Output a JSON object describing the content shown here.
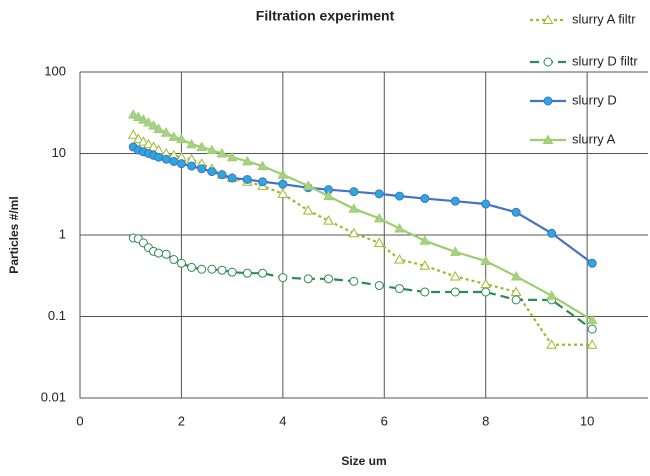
{
  "chart_data": {
    "type": "line",
    "title": "Filtration experiment",
    "x_label": "Size um",
    "y_label": "Particles #/ml",
    "x": [
      1.05,
      1.15,
      1.25,
      1.35,
      1.45,
      1.55,
      1.7,
      1.85,
      2.0,
      2.2,
      2.4,
      2.6,
      2.8,
      3.0,
      3.3,
      3.6,
      4.0,
      4.5,
      4.9,
      5.4,
      5.9,
      6.3,
      6.8,
      7.4,
      8.0,
      8.6,
      9.3,
      10.1
    ],
    "series": [
      {
        "name": "slurry A filtr",
        "color": "#9cbb2c",
        "dash": "dotted",
        "marker": "triangle",
        "filled": false,
        "values": [
          17,
          15,
          14,
          13,
          12,
          11,
          10,
          9.5,
          9,
          8.5,
          7.5,
          6.5,
          5.5,
          5,
          4.5,
          4,
          3.2,
          2,
          1.5,
          1.05,
          0.8,
          0.5,
          0.42,
          0.31,
          0.25,
          0.2,
          0.045,
          0.045
        ]
      },
      {
        "name": "slurry D filtr",
        "color": "#2e8b57",
        "dash": "dashed",
        "marker": "circle",
        "filled": false,
        "values": [
          0.92,
          0.9,
          0.8,
          0.7,
          0.63,
          0.6,
          0.58,
          0.5,
          0.45,
          0.4,
          0.38,
          0.38,
          0.37,
          0.35,
          0.34,
          0.34,
          0.3,
          0.29,
          0.29,
          0.27,
          0.24,
          0.22,
          0.2,
          0.2,
          0.2,
          0.16,
          0.16,
          0.07
        ]
      },
      {
        "name": "slurry D",
        "color": "#4472c4",
        "dash": "solid",
        "marker": "circle",
        "filled": true,
        "marker_fill": "#2aa8e0",
        "values": [
          12,
          11,
          10.5,
          10,
          9.5,
          9,
          8.5,
          8,
          7.5,
          7,
          6.5,
          6,
          5.5,
          5,
          4.8,
          4.5,
          4.2,
          3.8,
          3.6,
          3.4,
          3.2,
          3,
          2.8,
          2.6,
          2.4,
          1.9,
          1.05,
          0.45
        ]
      },
      {
        "name": "slurry A",
        "color": "#9bcf6a",
        "dash": "solid",
        "marker": "triangle",
        "filled": true,
        "marker_fill": "#a8d08d",
        "values": [
          30,
          28,
          26,
          24,
          22,
          20,
          18,
          16,
          15,
          13,
          12,
          11,
          10,
          9,
          8,
          7,
          5.5,
          4,
          3,
          2.1,
          1.6,
          1.2,
          0.85,
          0.62,
          0.48,
          0.31,
          0.18,
          0.09
        ]
      }
    ],
    "xlim": [
      0,
      11.2
    ],
    "xticks": [
      0,
      2,
      4,
      6,
      8,
      10
    ],
    "ylim": [
      0.01,
      100
    ],
    "yticks": [
      100,
      10,
      1,
      0.1,
      0.01
    ],
    "yscale": "log",
    "grid": true,
    "legend": "right"
  }
}
